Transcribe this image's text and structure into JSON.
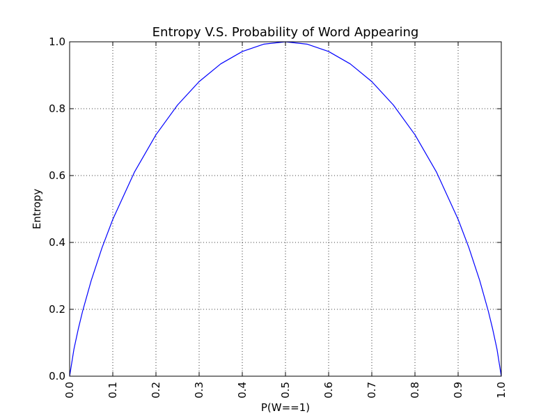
{
  "chart_data": {
    "type": "line",
    "title": "Entropy V.S. Probability of Word Appearing",
    "xlabel": "P(W==1)",
    "ylabel": "Entropy",
    "xlim": [
      0.0,
      1.0
    ],
    "ylim": [
      0.0,
      1.0
    ],
    "grid": true,
    "x_ticks": [
      "0.0",
      "0.1",
      "0.2",
      "0.3",
      "0.4",
      "0.5",
      "0.6",
      "0.7",
      "0.8",
      "0.9",
      "1.0"
    ],
    "y_ticks": [
      "0.0",
      "0.2",
      "0.4",
      "0.6",
      "0.8",
      "1.0"
    ],
    "series": [
      {
        "color": "#0000ff",
        "x": [
          0.0,
          0.01,
          0.02,
          0.03,
          0.05,
          0.075,
          0.1,
          0.15,
          0.2,
          0.25,
          0.3,
          0.35,
          0.4,
          0.45,
          0.5,
          0.55,
          0.6,
          0.65,
          0.7,
          0.75,
          0.8,
          0.85,
          0.9,
          0.925,
          0.95,
          0.97,
          0.98,
          0.99,
          1.0
        ],
        "y": [
          0.0,
          0.081,
          0.141,
          0.194,
          0.286,
          0.384,
          0.469,
          0.61,
          0.722,
          0.811,
          0.881,
          0.934,
          0.971,
          0.993,
          1.0,
          0.993,
          0.971,
          0.934,
          0.881,
          0.811,
          0.722,
          0.61,
          0.469,
          0.384,
          0.286,
          0.194,
          0.141,
          0.081,
          0.0
        ]
      }
    ]
  }
}
